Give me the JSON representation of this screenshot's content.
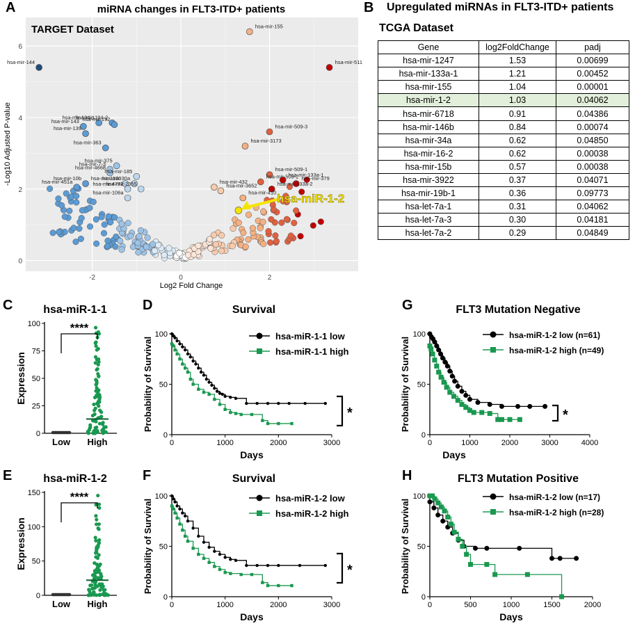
{
  "panels": {
    "A": "A",
    "B": "B",
    "C": "C",
    "D": "D",
    "E": "E",
    "F": "F",
    "G": "G",
    "H": "H"
  },
  "colors": {
    "blue_dark": "#1f4e79",
    "blue": "#5b9bd5",
    "blue_light": "#bdd7ee",
    "red_dark": "#8b0000",
    "red": "#c0392b",
    "salmon": "#f4b183",
    "green": "#1a9850",
    "black": "#000000",
    "highlight_row": "#e2efda",
    "arrow": "#f5e400"
  },
  "volcano": {
    "title": "miRNA changes in FLT3-ITD+ patients",
    "dataset": "TARGET Dataset",
    "xlabel": "Log2 Fold Change",
    "ylabel": "-Log10 Adjusted P-value",
    "callout": "hsa-miR-1-2"
  },
  "table": {
    "title": "Upregulated miRNAs in FLT3-ITD+ patients",
    "dataset": "TCGA Dataset",
    "headers": [
      "Gene",
      "log2FoldChange",
      "padj"
    ],
    "rows": [
      [
        "hsa-mir-1247",
        "1.53",
        "0.00699"
      ],
      [
        "hsa-mir-133a-1",
        "1.21",
        "0.00452"
      ],
      [
        "hsa-mir-155",
        "1.04",
        "0.00001"
      ],
      [
        "hsa-mir-1-2",
        "1.03",
        "0.04062"
      ],
      [
        "hsa-mir-6718",
        "0.91",
        "0.04386"
      ],
      [
        "hsa-mir-146b",
        "0.84",
        "0.00074"
      ],
      [
        "hsa-mir-34a",
        "0.62",
        "0.04850"
      ],
      [
        "hsa-mir-16-2",
        "0.62",
        "0.00038"
      ],
      [
        "hsa-mir-15b",
        "0.57",
        "0.00038"
      ],
      [
        "hsa-mir-3922",
        "0.37",
        "0.04071"
      ],
      [
        "hsa-mir-19b-1",
        "0.36",
        "0.09773"
      ],
      [
        "hsa-let-7a-1",
        "0.31",
        "0.04062"
      ],
      [
        "hsa-let-7a-3",
        "0.30",
        "0.04181"
      ],
      [
        "hsa-let-7a-2",
        "0.29",
        "0.04849"
      ]
    ],
    "highlight_index": 3
  },
  "chart_data": [
    {
      "id": "A",
      "type": "scatter",
      "title": "miRNA changes in FLT3-ITD+ patients",
      "xlabel": "Log2 Fold Change",
      "ylabel": "-Log10 Adjusted P-value",
      "xlim": [
        -3.5,
        4.0
      ],
      "ylim": [
        -0.3,
        6.8
      ],
      "xticks": [
        -2,
        0,
        2
      ],
      "yticks": [
        0,
        2,
        4,
        6
      ],
      "labeled_points": [
        {
          "label": "hsa-mir-155",
          "x": 1.55,
          "y": 6.4,
          "color": "#f4b183"
        },
        {
          "label": "hsa-mir-144",
          "x": -3.2,
          "y": 5.4,
          "color": "#1f4e79"
        },
        {
          "label": "hsa-mir-511",
          "x": 3.35,
          "y": 5.4,
          "color": "#c00000"
        },
        {
          "label": "hsa-mir-194-1",
          "x": -1.85,
          "y": 3.85,
          "color": "#5b9bd5"
        },
        {
          "label": "hsa-mir-143",
          "x": -2.2,
          "y": 3.75,
          "color": "#5b9bd5"
        },
        {
          "label": "hsa-mir-194-2",
          "x": -1.55,
          "y": 3.85,
          "color": "#5b9bd5"
        },
        {
          "label": "hsa-mir-192",
          "x": -1.5,
          "y": 3.8,
          "color": "#5b9bd5"
        },
        {
          "label": "hsa-mir-139",
          "x": -2.15,
          "y": 3.55,
          "color": "#5b9bd5"
        },
        {
          "label": "hsa-mir-509-3",
          "x": 2.0,
          "y": 3.6,
          "color": "#e06040"
        },
        {
          "label": "hsa-mir-363",
          "x": -1.7,
          "y": 3.15,
          "color": "#5b9bd5"
        },
        {
          "label": "hsa-mir-3173",
          "x": 1.45,
          "y": 3.2,
          "color": "#f4b183"
        },
        {
          "label": "hsa-mir-375",
          "x": -1.45,
          "y": 2.65,
          "color": "#9dc3e6"
        },
        {
          "label": "hsa-mir-7-3",
          "x": -1.6,
          "y": 2.55,
          "color": "#9dc3e6"
        },
        {
          "label": "hsa-mir-4668",
          "x": -1.6,
          "y": 2.45,
          "color": "#9dc3e6"
        },
        {
          "label": "hsa-mir-185",
          "x": -1.0,
          "y": 2.35,
          "color": "#bdd7ee"
        },
        {
          "label": "hsa-mir-509-1",
          "x": 2.0,
          "y": 2.4,
          "color": "#e06040"
        },
        {
          "label": "hsa-mir-10b",
          "x": -2.15,
          "y": 2.15,
          "color": "#5b9bd5"
        },
        {
          "label": "hsa-mir-1180",
          "x": -1.25,
          "y": 2.15,
          "color": "#bdd7ee"
        },
        {
          "label": "hsa-mir-30a",
          "x": -1.05,
          "y": 2.15,
          "color": "#bdd7ee"
        },
        {
          "label": "hsa-mir-509-2",
          "x": 1.8,
          "y": 2.2,
          "color": "#e06040"
        },
        {
          "label": "hsa-mir-432",
          "x": 0.75,
          "y": 2.05,
          "color": "#f8cbad"
        },
        {
          "label": "hsa-mir-133a-1",
          "x": 2.3,
          "y": 2.25,
          "color": "#c00000"
        },
        {
          "label": "hsa-mir-379",
          "x": 2.6,
          "y": 2.15,
          "color": "#c00000"
        },
        {
          "label": "hsa-mir-451a",
          "x": -2.35,
          "y": 2.05,
          "color": "#5b9bd5"
        },
        {
          "label": "hsa-mir-4772",
          "x": -1.2,
          "y": 2.0,
          "color": "#bdd7ee"
        },
        {
          "label": "hsa-mir-2355",
          "x": -0.9,
          "y": 2.0,
          "color": "#bdd7ee"
        },
        {
          "label": "hsa-mir-133a-2",
          "x": 2.05,
          "y": 2.0,
          "color": "#c00000"
        },
        {
          "label": "hsa-mir-3652",
          "x": 0.9,
          "y": 1.95,
          "color": "#f8cbad"
        },
        {
          "label": "hsa-mir-410",
          "x": 1.4,
          "y": 1.75,
          "color": "#f4b183"
        },
        {
          "label": "hsa-mir-106a",
          "x": -1.2,
          "y": 1.75,
          "color": "#bdd7ee"
        },
        {
          "label": "hsa-miR-1-2",
          "x": 1.3,
          "y": 1.4,
          "color": "#f5e400"
        }
      ]
    },
    {
      "id": "C",
      "type": "scatter",
      "title": "hsa-miR-1-1",
      "ylabel": "Expression",
      "categories": [
        "Low",
        "High"
      ],
      "ylim": [
        0,
        100
      ],
      "yticks": [
        0,
        25,
        50,
        75,
        100
      ],
      "mean_high": 13,
      "significance": "****"
    },
    {
      "id": "E",
      "type": "scatter",
      "title": "hsa-miR-1-2",
      "ylabel": "Expression",
      "categories": [
        "Low",
        "High"
      ],
      "ylim": [
        0,
        150
      ],
      "yticks": [
        0,
        50,
        100,
        150
      ],
      "mean_high": 22,
      "significance": "****"
    },
    {
      "id": "D",
      "type": "line",
      "title": "Survival",
      "xlabel": "Days",
      "ylabel": "Probability of Survival",
      "xlim": [
        0,
        3000
      ],
      "xticks": [
        0,
        1000,
        2000,
        3000
      ],
      "ylim": [
        0,
        100
      ],
      "yticks": [
        0,
        50,
        100
      ],
      "significance": "*",
      "series": [
        {
          "name": "hsa-miR-1-1 low",
          "color": "#000000",
          "marker": "circle",
          "x": [
            0,
            30,
            60,
            100,
            150,
            200,
            250,
            300,
            350,
            400,
            450,
            500,
            550,
            600,
            650,
            700,
            750,
            800,
            850,
            900,
            950,
            1000,
            1100,
            1200,
            1400,
            1600,
            1800,
            2000,
            2200,
            2500,
            2880
          ],
          "y": [
            100,
            98,
            96,
            93,
            90,
            87,
            84,
            80,
            77,
            73,
            70,
            66,
            62,
            59,
            55,
            52,
            49,
            46,
            43,
            41,
            40,
            38,
            37,
            36,
            31,
            31,
            31,
            31,
            31,
            31,
            31
          ]
        },
        {
          "name": "hsa-miR-1-1 high",
          "color": "#1a9850",
          "marker": "square",
          "x": [
            0,
            30,
            60,
            100,
            150,
            200,
            250,
            300,
            350,
            400,
            500,
            600,
            700,
            800,
            900,
            1000,
            1100,
            1200,
            1300,
            1500,
            1700,
            1800,
            2000,
            2250
          ],
          "y": [
            90,
            88,
            84,
            80,
            75,
            70,
            66,
            62,
            55,
            50,
            45,
            42,
            40,
            35,
            30,
            25,
            22,
            21,
            20,
            20,
            14,
            11,
            11,
            11
          ]
        }
      ]
    },
    {
      "id": "F",
      "type": "line",
      "title": "Survival",
      "xlabel": "Days",
      "ylabel": "Probability of Survival",
      "xlim": [
        0,
        3000
      ],
      "xticks": [
        0,
        1000,
        2000,
        3000
      ],
      "ylim": [
        0,
        100
      ],
      "yticks": [
        0,
        50,
        100
      ],
      "significance": "*",
      "series": [
        {
          "name": "hsa-miR-1-2 low",
          "color": "#000000",
          "marker": "circle",
          "x": [
            0,
            30,
            60,
            100,
            150,
            200,
            250,
            300,
            400,
            500,
            600,
            700,
            800,
            900,
            1000,
            1100,
            1200,
            1400,
            1600,
            1800,
            2000,
            2400,
            2880
          ],
          "y": [
            100,
            97,
            94,
            90,
            87,
            83,
            80,
            75,
            68,
            60,
            54,
            49,
            45,
            42,
            39,
            37,
            36,
            31,
            31,
            31,
            31,
            31,
            31
          ]
        },
        {
          "name": "hsa-miR-1-2 high",
          "color": "#1a9850",
          "marker": "square",
          "x": [
            0,
            30,
            60,
            100,
            150,
            200,
            250,
            300,
            400,
            500,
            600,
            700,
            800,
            900,
            1000,
            1100,
            1300,
            1500,
            1700,
            1800,
            2000,
            2250
          ],
          "y": [
            90,
            87,
            83,
            78,
            72,
            66,
            60,
            55,
            48,
            42,
            38,
            34,
            30,
            27,
            24,
            23,
            22,
            22,
            14,
            11,
            11,
            11
          ]
        }
      ]
    },
    {
      "id": "G",
      "type": "line",
      "title": "FLT3 Mutation Negative",
      "xlabel": "Days",
      "ylabel": "Probability of Survival",
      "xlim": [
        0,
        4000
      ],
      "xticks": [
        0,
        1000,
        2000,
        3000,
        4000
      ],
      "ylim": [
        0,
        100
      ],
      "yticks": [
        0,
        50,
        100
      ],
      "significance": "*",
      "series": [
        {
          "name": "hsa-miR-1-2 low (n=61)",
          "color": "#000000",
          "marker": "circle",
          "x": [
            0,
            40,
            80,
            120,
            170,
            220,
            270,
            320,
            380,
            440,
            500,
            560,
            620,
            700,
            800,
            900,
            1000,
            1200,
            1500,
            1800,
            2200,
            2500,
            2880
          ],
          "y": [
            100,
            97,
            95,
            92,
            88,
            84,
            80,
            76,
            72,
            68,
            63,
            58,
            53,
            48,
            43,
            39,
            35,
            32,
            30,
            28,
            28,
            28,
            28
          ]
        },
        {
          "name": "hsa-miR-1-2 high (n=49)",
          "color": "#1a9850",
          "marker": "square",
          "x": [
            0,
            30,
            70,
            120,
            170,
            220,
            280,
            350,
            420,
            500,
            600,
            700,
            800,
            900,
            1000,
            1100,
            1300,
            1500,
            1700,
            1800,
            2000,
            2250
          ],
          "y": [
            88,
            85,
            80,
            74,
            68,
            62,
            57,
            52,
            47,
            42,
            38,
            34,
            30,
            27,
            24,
            22,
            22,
            21,
            15,
            15,
            15,
            15
          ]
        }
      ]
    },
    {
      "id": "H",
      "type": "line",
      "title": "FLT3 Mutation Positive",
      "xlabel": "Days",
      "ylabel": "Probability of Survival",
      "xlim": [
        0,
        2000
      ],
      "xticks": [
        0,
        500,
        1000,
        1500,
        2000
      ],
      "ylim": [
        0,
        100
      ],
      "yticks": [
        0,
        50,
        100
      ],
      "series": [
        {
          "name": "hsa-miR-1-2 low (n=17)",
          "color": "#000000",
          "marker": "circle",
          "x": [
            0,
            50,
            100,
            160,
            220,
            280,
            350,
            420,
            560,
            700,
            1100,
            1500,
            1600,
            1800
          ],
          "y": [
            94,
            88,
            81,
            75,
            69,
            63,
            56,
            50,
            48,
            48,
            48,
            38,
            38,
            38
          ]
        },
        {
          "name": "hsa-miR-1-2 high (n=28)",
          "color": "#1a9850",
          "marker": "square",
          "x": [
            0,
            30,
            60,
            100,
            140,
            180,
            220,
            260,
            300,
            350,
            400,
            450,
            500,
            700,
            800,
            1200,
            1620
          ],
          "y": [
            100,
            100,
            97,
            93,
            89,
            85,
            79,
            72,
            64,
            57,
            50,
            42,
            32,
            32,
            22,
            22,
            0
          ]
        }
      ]
    }
  ]
}
